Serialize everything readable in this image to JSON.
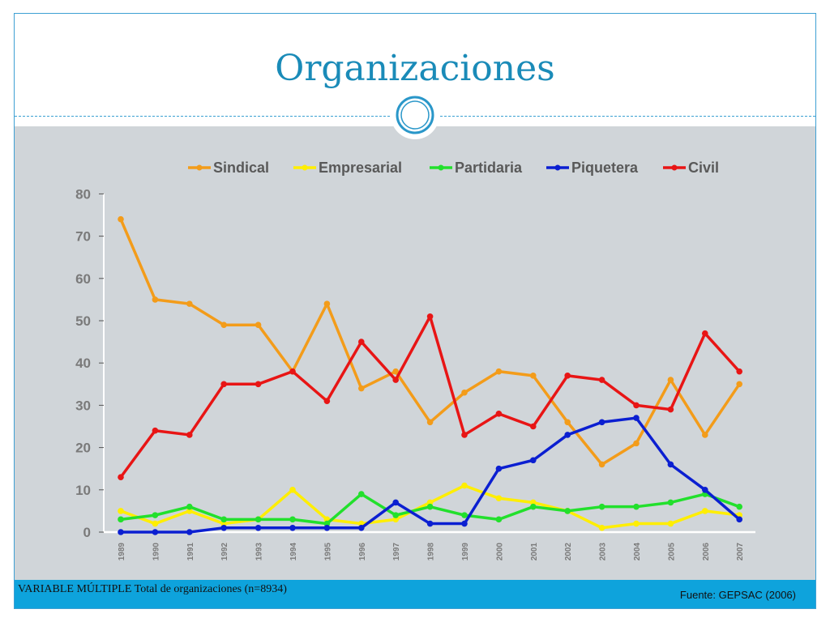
{
  "slide": {
    "title": "Organizaciones",
    "footer_left": "VARIABLE MÚLTIPLE Total de organizaciones (n=8934)",
    "footer_right": "Fuente: GEPSAC (2006)"
  },
  "chart_data": {
    "type": "line",
    "title": "",
    "xlabel": "",
    "ylabel": "",
    "ylim": [
      0,
      80
    ],
    "yticks": [
      0,
      10,
      20,
      30,
      40,
      50,
      60,
      70,
      80
    ],
    "legend_position": "top",
    "grid": false,
    "x": [
      "1989",
      "1990",
      "1991",
      "1992",
      "1993",
      "1994",
      "1995",
      "1996",
      "1997",
      "1998",
      "1999",
      "2000",
      "2001",
      "2002",
      "2003",
      "2004",
      "2005",
      "2006",
      "2007"
    ],
    "series": [
      {
        "name": "Sindical",
        "color": "#f39c1a",
        "values": [
          74,
          55,
          54,
          49,
          49,
          38,
          54,
          34,
          38,
          26,
          33,
          38,
          37,
          26,
          16,
          21,
          36,
          23,
          35
        ]
      },
      {
        "name": "Empresarial",
        "color": "#ffee00",
        "values": [
          5,
          2,
          5,
          2,
          3,
          10,
          3,
          2,
          3,
          7,
          11,
          8,
          7,
          5,
          1,
          2,
          2,
          5,
          4
        ]
      },
      {
        "name": "Partidaria",
        "color": "#22e02c",
        "values": [
          3,
          4,
          6,
          3,
          3,
          3,
          2,
          9,
          4,
          6,
          4,
          3,
          6,
          5,
          6,
          6,
          7,
          9,
          6
        ]
      },
      {
        "name": "Piquetera",
        "color": "#0b1fd1",
        "values": [
          0,
          0,
          0,
          1,
          1,
          1,
          1,
          1,
          7,
          2,
          2,
          15,
          17,
          23,
          26,
          27,
          16,
          10,
          3
        ]
      },
      {
        "name": "Civil",
        "color": "#e81515",
        "values": [
          13,
          24,
          23,
          35,
          35,
          38,
          31,
          45,
          36,
          51,
          23,
          28,
          25,
          37,
          36,
          30,
          29,
          47,
          38
        ]
      }
    ]
  }
}
